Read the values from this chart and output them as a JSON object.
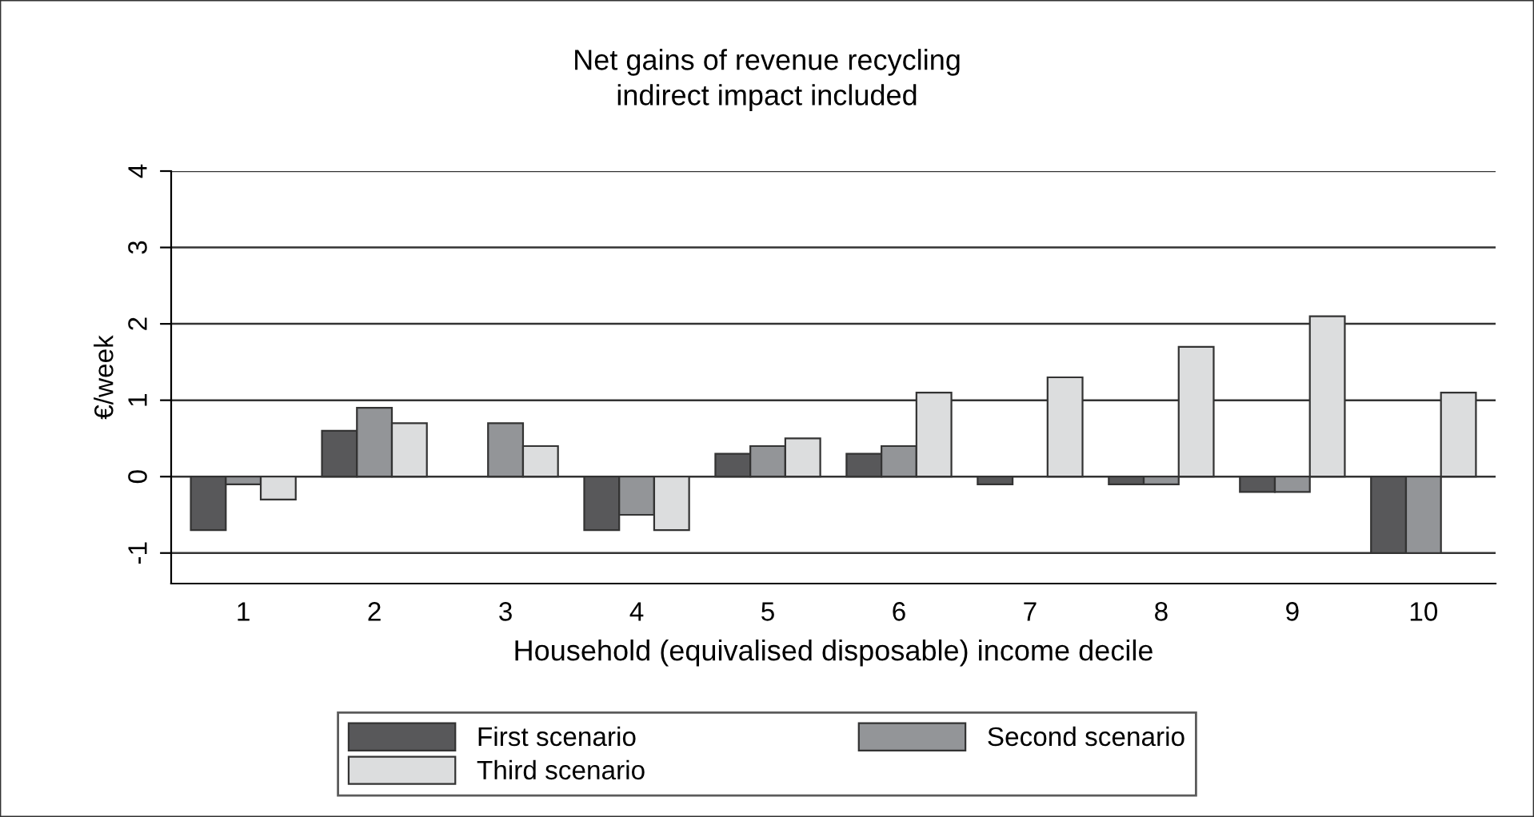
{
  "chart_data": {
    "type": "bar",
    "title": "Net gains of revenue recycling\nindirect impact included",
    "xlabel": "Household (equivalised disposable) income decile",
    "ylabel": "€/week",
    "categories": [
      "1",
      "2",
      "3",
      "4",
      "5",
      "6",
      "7",
      "8",
      "9",
      "10"
    ],
    "series": [
      {
        "name": "First scenario",
        "color": "#58585a",
        "values": [
          -0.7,
          0.6,
          null,
          -0.7,
          0.3,
          0.3,
          -0.1,
          -0.1,
          -0.2,
          -1
        ]
      },
      {
        "name": "Second scenario",
        "color": "#939598",
        "values": [
          -0.1,
          0.9,
          0.7,
          -0.5,
          0.4,
          0.4,
          null,
          -0.1,
          -0.2,
          -1
        ]
      },
      {
        "name": "Third scenario",
        "color": "#dcddde",
        "values": [
          -0.3,
          0.7,
          0.4,
          -0.7,
          0.5,
          1.1,
          1.3,
          1.7,
          2.1,
          1.1
        ]
      }
    ],
    "ylim": [
      -1.4,
      4
    ],
    "yticks": [
      -1,
      0,
      1,
      2,
      3,
      4
    ],
    "grid": "y",
    "legend": "bottom"
  }
}
